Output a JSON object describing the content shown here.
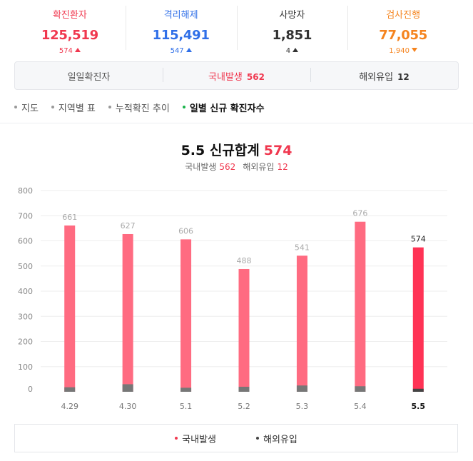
{
  "stats": [
    {
      "label": "확진환자",
      "value": "125,519",
      "delta": "574",
      "direction": "up",
      "color": "#f0384f"
    },
    {
      "label": "격리해제",
      "value": "115,491",
      "delta": "547",
      "direction": "up",
      "color": "#2f6fe8"
    },
    {
      "label": "사망자",
      "value": "1,851",
      "delta": "4",
      "direction": "up",
      "color": "#333333"
    },
    {
      "label": "검사진행",
      "value": "77,055",
      "delta": "1,940",
      "direction": "down",
      "color": "#f5841f"
    }
  ],
  "daily": {
    "label": "일일확진자",
    "domestic_label": "국내발생",
    "domestic_value": "562",
    "overseas_label": "해외유입",
    "overseas_value": "12"
  },
  "tabs": [
    {
      "label": "지도",
      "active": false
    },
    {
      "label": "지역별 표",
      "active": false
    },
    {
      "label": "누적확진 추이",
      "active": false
    },
    {
      "label": "일별 신규 확진자수",
      "active": true
    }
  ],
  "chart_header": {
    "title": "5.5 신규합계",
    "total": "574",
    "domestic_label": "국내발생",
    "domestic_value": "562",
    "overseas_label": "해외유입",
    "overseas_value": "12"
  },
  "legend": {
    "domestic": "국내발생",
    "overseas": "해외유입"
  },
  "colors": {
    "domestic": "#ff6b81",
    "domestic_highlight": "#ff3355",
    "overseas": "#777777",
    "overseas_highlight": "#444444"
  },
  "chart_data": {
    "type": "bar",
    "categories": [
      "4.29",
      "4.30",
      "5.1",
      "5.2",
      "5.3",
      "5.4",
      "5.5"
    ],
    "series": [
      {
        "name": "국내발생",
        "values": [
          643,
          597,
          590,
          468,
          516,
          654,
          562
        ]
      },
      {
        "name": "해외유입",
        "values": [
          18,
          30,
          16,
          20,
          25,
          22,
          12
        ]
      }
    ],
    "totals": [
      661,
      627,
      606,
      488,
      541,
      676,
      574
    ],
    "yticks": [
      0,
      100,
      200,
      300,
      400,
      500,
      600,
      700,
      800
    ],
    "ylim": [
      0,
      800
    ],
    "highlight_index": 6,
    "grid": true,
    "stacked": false
  }
}
